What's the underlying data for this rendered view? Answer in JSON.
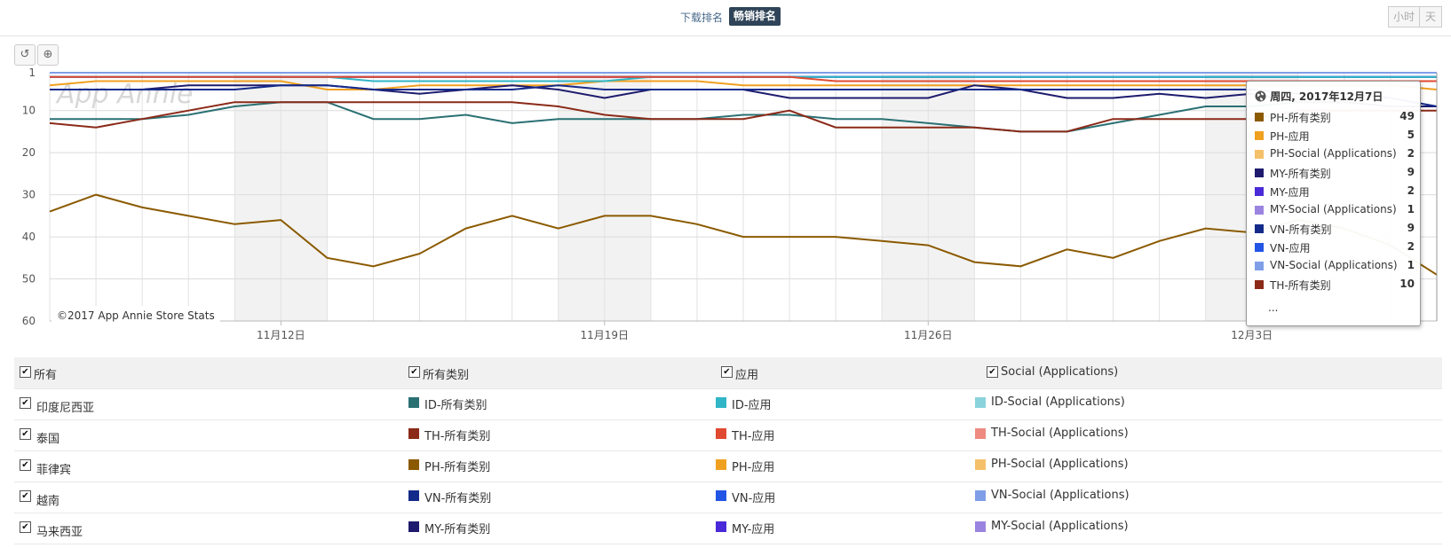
{
  "rank_toggle": {
    "download_label": "下载排名",
    "grossing_label": "畅销排名"
  },
  "granularity": {
    "hour_label": "小时",
    "day_label": "天"
  },
  "tools": {
    "reset_icon": "↺",
    "zoom_icon": "⊕"
  },
  "watermark": "App Annie",
  "credit": "©2017 App Annie Store Stats",
  "chart_data": {
    "type": "line",
    "x": [
      "2017-11-07",
      "2017-11-08",
      "2017-11-09",
      "2017-11-10",
      "2017-11-11",
      "2017-11-12",
      "2017-11-13",
      "2017-11-14",
      "2017-11-15",
      "2017-11-16",
      "2017-11-17",
      "2017-11-18",
      "2017-11-19",
      "2017-11-20",
      "2017-11-21",
      "2017-11-22",
      "2017-11-23",
      "2017-11-24",
      "2017-11-25",
      "2017-11-26",
      "2017-11-27",
      "2017-11-28",
      "2017-11-29",
      "2017-11-30",
      "2017-12-01",
      "2017-12-02",
      "2017-12-03",
      "2017-12-04",
      "2017-12-05",
      "2017-12-06",
      "2017-12-07"
    ],
    "x_tick_labels": [
      "11月12日",
      "11月19日",
      "11月26日",
      "12月3日"
    ],
    "x_tick_dates": [
      "2017-11-12",
      "2017-11-19",
      "2017-11-26",
      "2017-12-03"
    ],
    "y_ticks": [
      1,
      10,
      20,
      30,
      40,
      50,
      60
    ],
    "ylim": [
      1,
      60
    ],
    "y_reversed": true,
    "grid": true,
    "series": [
      {
        "name": "PH-所有类别",
        "color": "#8b5a00",
        "values": [
          34,
          30,
          33,
          35,
          37,
          36,
          45,
          47,
          44,
          38,
          35,
          38,
          35,
          35,
          37,
          40,
          40,
          40,
          41,
          42,
          46,
          47,
          43,
          45,
          41,
          38,
          39,
          36,
          38,
          42,
          49
        ]
      },
      {
        "name": "PH-应用",
        "color": "#f0a020",
        "values": [
          4,
          3,
          3,
          3,
          3,
          3,
          5,
          5,
          4,
          4,
          4,
          4,
          3,
          3,
          3,
          4,
          4,
          4,
          4,
          4,
          4,
          4,
          4,
          4,
          4,
          4,
          4,
          4,
          4,
          4,
          5
        ]
      },
      {
        "name": "PH-Social (Applications)",
        "color": "#f5c06a",
        "values": [
          2,
          2,
          2,
          2,
          2,
          2,
          2,
          2,
          2,
          2,
          2,
          2,
          2,
          2,
          2,
          2,
          2,
          2,
          2,
          2,
          2,
          2,
          2,
          2,
          2,
          2,
          2,
          2,
          2,
          2,
          2
        ]
      },
      {
        "name": "ID-所有类别",
        "color": "#2a7073",
        "values": [
          12,
          12,
          12,
          11,
          9,
          8,
          8,
          12,
          12,
          11,
          13,
          12,
          12,
          12,
          12,
          11,
          11,
          12,
          12,
          13,
          14,
          15,
          15,
          13,
          11,
          9,
          9,
          8,
          8,
          9,
          9
        ]
      },
      {
        "name": "TH-所有类别",
        "color": "#8b2a18",
        "values": [
          13,
          14,
          12,
          10,
          8,
          8,
          8,
          8,
          8,
          8,
          8,
          9,
          11,
          12,
          12,
          12,
          10,
          14,
          14,
          14,
          14,
          15,
          15,
          12,
          12,
          12,
          12,
          10,
          10,
          10,
          10
        ]
      },
      {
        "name": "MY-所有类别",
        "color": "#1e1b6e",
        "values": [
          5,
          5,
          5,
          4,
          4,
          4,
          4,
          5,
          6,
          5,
          4,
          5,
          7,
          5,
          5,
          5,
          7,
          7,
          7,
          7,
          4,
          5,
          7,
          7,
          6,
          7,
          6,
          8,
          8,
          9,
          9
        ]
      },
      {
        "name": "MY-应用",
        "color": "#4a2ad8",
        "values": [
          2,
          2,
          2,
          2,
          2,
          2,
          2,
          2,
          2,
          2,
          2,
          2,
          2,
          2,
          2,
          2,
          2,
          2,
          2,
          2,
          2,
          2,
          2,
          2,
          2,
          2,
          2,
          2,
          2,
          2,
          2
        ]
      },
      {
        "name": "MY-Social (Applications)",
        "color": "#9a84e0",
        "values": [
          1,
          1,
          1,
          1,
          1,
          1,
          1,
          1,
          1,
          1,
          1,
          1,
          1,
          1,
          1,
          1,
          1,
          1,
          1,
          1,
          1,
          1,
          1,
          1,
          1,
          1,
          1,
          1,
          1,
          1,
          1
        ]
      },
      {
        "name": "VN-所有类别",
        "color": "#142a8a",
        "values": [
          5,
          5,
          5,
          5,
          5,
          4,
          4,
          5,
          5,
          5,
          5,
          4,
          5,
          5,
          5,
          5,
          5,
          5,
          5,
          5,
          5,
          5,
          5,
          5,
          5,
          5,
          5,
          6,
          6,
          7,
          9
        ]
      },
      {
        "name": "VN-应用",
        "color": "#2255e6",
        "values": [
          2,
          2,
          2,
          2,
          2,
          2,
          2,
          2,
          2,
          2,
          2,
          2,
          2,
          2,
          2,
          2,
          2,
          2,
          2,
          2,
          2,
          2,
          2,
          2,
          2,
          2,
          2,
          2,
          2,
          2,
          2
        ]
      },
      {
        "name": "VN-Social (Applications)",
        "color": "#7f9ee8",
        "values": [
          1,
          1,
          1,
          1,
          1,
          1,
          1,
          1,
          1,
          1,
          1,
          1,
          1,
          1,
          1,
          1,
          1,
          1,
          1,
          1,
          1,
          1,
          1,
          1,
          1,
          1,
          1,
          1,
          1,
          1,
          1
        ]
      },
      {
        "name": "ID-应用",
        "color": "#30b6c6",
        "values": [
          2,
          2,
          2,
          2,
          2,
          2,
          2,
          3,
          3,
          3,
          3,
          3,
          3,
          2,
          2,
          2,
          2,
          2,
          2,
          2,
          2,
          2,
          2,
          2,
          2,
          2,
          2,
          2,
          2,
          2,
          2
        ]
      },
      {
        "name": "TH-应用",
        "color": "#e04a30",
        "values": [
          2,
          2,
          2,
          2,
          2,
          2,
          2,
          2,
          2,
          2,
          2,
          2,
          2,
          2,
          2,
          2,
          2,
          3,
          3,
          3,
          3,
          3,
          3,
          3,
          3,
          3,
          3,
          3,
          3,
          3,
          3
        ]
      }
    ]
  },
  "tooltip": {
    "globe_icon": "globe-icon",
    "date": "周四, 2017年12月7日",
    "rows": [
      {
        "label": "PH-所有类别",
        "value": "49",
        "color": "#8b5a00"
      },
      {
        "label": "PH-应用",
        "value": "5",
        "color": "#f0a020"
      },
      {
        "label": "PH-Social (Applications)",
        "value": "2",
        "color": "#f5c06a"
      },
      {
        "label": "MY-所有类别",
        "value": "9",
        "color": "#1e1b6e"
      },
      {
        "label": "MY-应用",
        "value": "2",
        "color": "#4a2ad8"
      },
      {
        "label": "MY-Social (Applications)",
        "value": "1",
        "color": "#9a84e0"
      },
      {
        "label": "VN-所有类别",
        "value": "9",
        "color": "#142a8a"
      },
      {
        "label": "VN-应用",
        "value": "2",
        "color": "#2255e6"
      },
      {
        "label": "VN-Social (Applications)",
        "value": "1",
        "color": "#7f9ee8"
      },
      {
        "label": "TH-所有类别",
        "value": "10",
        "color": "#8b2a18"
      }
    ],
    "more": "..."
  },
  "legend": {
    "header": {
      "all": "所有",
      "all_categories": "所有类别",
      "apps": "应用",
      "social": "Social (Applications)"
    },
    "rows": [
      {
        "country": "印度尼西亚",
        "items": [
          {
            "label": "ID-所有类别",
            "color": "#2a7073"
          },
          {
            "label": "ID-应用",
            "color": "#30b6c6"
          },
          {
            "label": "ID-Social (Applications)",
            "color": "#8ad3dc"
          }
        ]
      },
      {
        "country": "泰国",
        "items": [
          {
            "label": "TH-所有类别",
            "color": "#8b2a18"
          },
          {
            "label": "TH-应用",
            "color": "#e04a30"
          },
          {
            "label": "TH-Social (Applications)",
            "color": "#ee8a80"
          }
        ]
      },
      {
        "country": "菲律宾",
        "items": [
          {
            "label": "PH-所有类别",
            "color": "#8b5a00"
          },
          {
            "label": "PH-应用",
            "color": "#f0a020"
          },
          {
            "label": "PH-Social (Applications)",
            "color": "#f5c06a"
          }
        ]
      },
      {
        "country": "越南",
        "items": [
          {
            "label": "VN-所有类别",
            "color": "#142a8a"
          },
          {
            "label": "VN-应用",
            "color": "#2255e6"
          },
          {
            "label": "VN-Social (Applications)",
            "color": "#7f9ee8"
          }
        ]
      },
      {
        "country": "马来西亚",
        "items": [
          {
            "label": "MY-所有类别",
            "color": "#1e1b6e"
          },
          {
            "label": "MY-应用",
            "color": "#4a2ad8"
          },
          {
            "label": "MY-Social (Applications)",
            "color": "#9a84e0"
          }
        ]
      }
    ]
  }
}
